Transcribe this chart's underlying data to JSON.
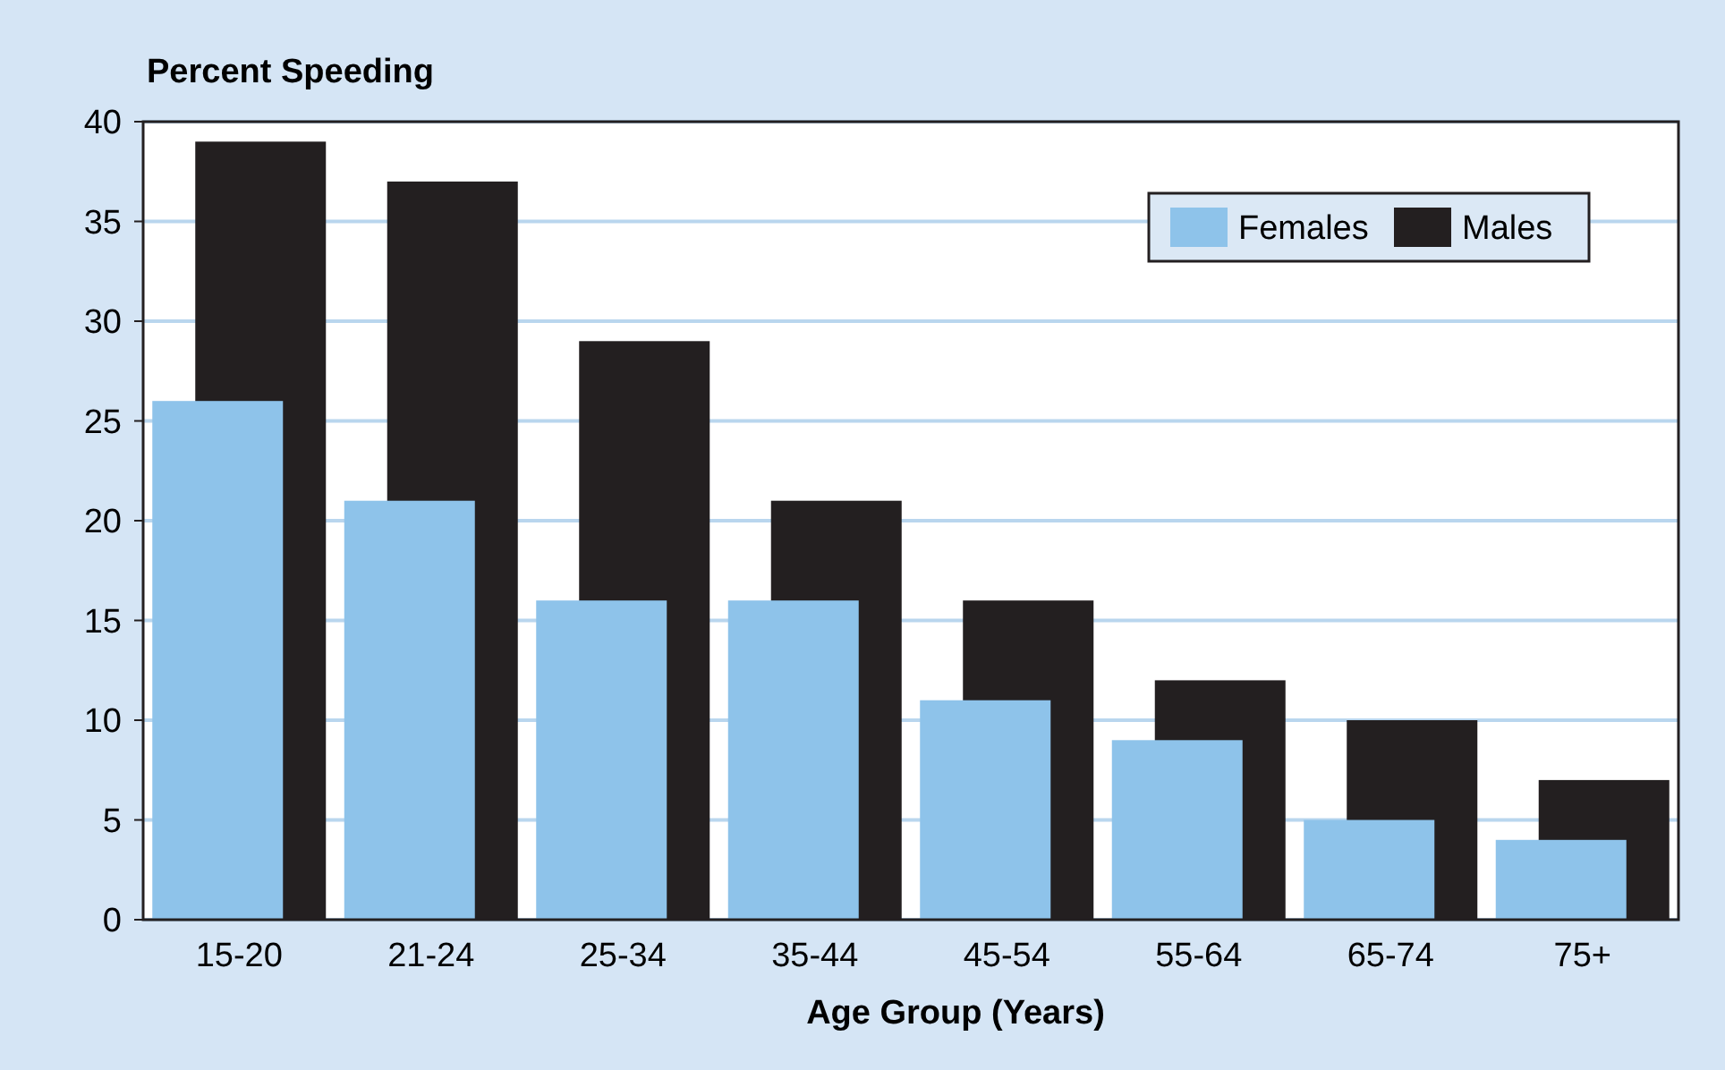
{
  "chart_data": {
    "type": "bar",
    "title": "Percent Speeding",
    "xlabel": "Age Group (Years)",
    "categories": [
      "15-20",
      "21-24",
      "25-34",
      "35-44",
      "45-54",
      "55-64",
      "65-74",
      "75+"
    ],
    "series": [
      {
        "name": "Females",
        "color": "#8ec3ea",
        "values": [
          26,
          21,
          16,
          16,
          11,
          9,
          5,
          4
        ]
      },
      {
        "name": "Males",
        "color": "#231f20",
        "values": [
          39,
          37,
          29,
          21,
          16,
          12,
          10,
          7
        ]
      }
    ],
    "ylim": [
      0,
      40
    ],
    "yticks": [
      0,
      5,
      10,
      15,
      20,
      25,
      30,
      35,
      40
    ],
    "grid": "y",
    "legend": "top right"
  }
}
